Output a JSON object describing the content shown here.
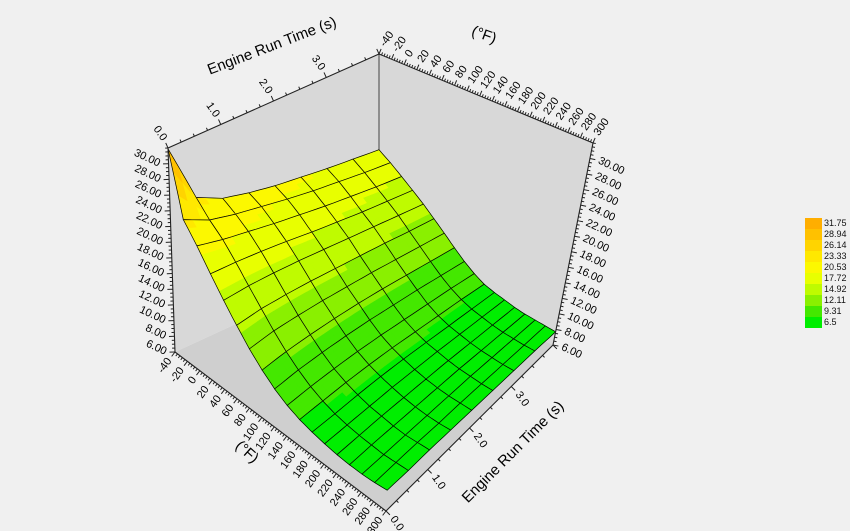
{
  "chart_data": {
    "type": "surface3d",
    "title": "",
    "x_axis": {
      "label": "Engine Run Time (s)",
      "min": 0,
      "max": 4,
      "ticks": [
        0,
        1,
        2,
        3
      ],
      "tick_labels": [
        "0.0",
        "1.0",
        "2.0",
        "3.0"
      ],
      "minor_step": 0.25
    },
    "y_axis": {
      "label": "(°F)",
      "min": -40,
      "max": 300,
      "ticks": [
        -40,
        -20,
        0,
        20,
        40,
        60,
        80,
        100,
        120,
        140,
        160,
        180,
        200,
        220,
        240,
        260,
        280,
        300
      ],
      "tick_labels": [
        "-40",
        "-20",
        "0",
        "20",
        "40",
        "60",
        "80",
        "100",
        "120",
        "140",
        "160",
        "180",
        "200",
        "220",
        "240",
        "260",
        "280",
        "300"
      ],
      "minor_step": 4
    },
    "z_axis": {
      "label": "",
      "min": 6,
      "max": 32,
      "ticks": [
        6,
        8,
        10,
        12,
        14,
        16,
        18,
        20,
        22,
        24,
        26,
        28,
        30
      ],
      "tick_labels": [
        "6.00",
        "8.00",
        "10.00",
        "12.00",
        "14.00",
        "16.00",
        "18.00",
        "20.00",
        "22.00",
        "24.00",
        "26.00",
        "28.00",
        "30.00"
      ],
      "minor_step": 0.5
    },
    "x_values": [
      0,
      0.5,
      1,
      1.5,
      2,
      2.5,
      3,
      3.5,
      4
    ],
    "y_values": [
      -40,
      -20,
      0,
      20,
      40,
      60,
      80,
      100,
      120,
      140,
      160,
      180,
      200,
      220,
      240,
      260,
      280,
      300
    ],
    "z_grid": [
      [
        31.9,
        24.2,
        22.6,
        21.8,
        21.2,
        20.8,
        20.4,
        20.1,
        19.8
      ],
      [
        24.0,
        22.4,
        21.6,
        21.0,
        20.4,
        19.9,
        19.5,
        19.1,
        18.8
      ],
      [
        21.8,
        21.0,
        20.4,
        19.8,
        19.3,
        18.8,
        18.4,
        18.0,
        17.7
      ],
      [
        19.4,
        19.2,
        18.9,
        18.5,
        18.0,
        17.6,
        17.2,
        16.9,
        16.6
      ],
      [
        17.2,
        17.3,
        17.2,
        17.0,
        16.7,
        16.4,
        16.1,
        15.8,
        15.5
      ],
      [
        15.2,
        15.5,
        15.5,
        15.4,
        15.2,
        15.0,
        14.8,
        14.5,
        14.3
      ],
      [
        13.4,
        13.8,
        13.9,
        13.9,
        13.8,
        13.7,
        13.5,
        13.3,
        13.1
      ],
      [
        11.9,
        12.3,
        12.5,
        12.6,
        12.6,
        12.5,
        12.3,
        12.1,
        11.9
      ],
      [
        10.7,
        11.1,
        11.3,
        11.4,
        11.4,
        11.3,
        11.2,
        11.0,
        10.8
      ],
      [
        9.8,
        10.1,
        10.3,
        10.4,
        10.4,
        10.3,
        10.2,
        10.1,
        9.9
      ],
      [
        9.2,
        9.4,
        9.6,
        9.7,
        9.7,
        9.6,
        9.5,
        9.4,
        9.2
      ],
      [
        8.8,
        8.9,
        9.1,
        9.2,
        9.2,
        9.1,
        9.0,
        8.9,
        8.8
      ],
      [
        8.5,
        8.6,
        8.7,
        8.8,
        8.8,
        8.8,
        8.7,
        8.6,
        8.5
      ],
      [
        8.3,
        8.4,
        8.5,
        8.5,
        8.5,
        8.5,
        8.4,
        8.3,
        8.2
      ],
      [
        8.2,
        8.3,
        8.3,
        8.3,
        8.3,
        8.3,
        8.2,
        8.1,
        8.0
      ],
      [
        8.2,
        8.2,
        8.2,
        8.2,
        8.2,
        8.2,
        8.1,
        8.0,
        7.9
      ],
      [
        8.3,
        8.3,
        8.3,
        8.2,
        8.2,
        8.1,
        8.0,
        7.9,
        7.8
      ],
      [
        8.5,
        8.4,
        8.4,
        8.3,
        8.2,
        8.1,
        8.0,
        7.9,
        7.7
      ]
    ],
    "legend": {
      "labels": [
        "31.75",
        "28.94",
        "26.14",
        "23.33",
        "20.53",
        "17.72",
        "14.92",
        "12.11",
        "9.31",
        "6.5"
      ],
      "levels": [
        6.5,
        9.31,
        12.11,
        14.92,
        17.72,
        20.53,
        23.33,
        26.14,
        28.94,
        31.75
      ],
      "band_colors": [
        "#00EE00",
        "#44E800",
        "#8AF000",
        "#BFFB00",
        "#E8FF00",
        "#FCF800",
        "#FFE800",
        "#FFD400",
        "#FFC100",
        "#FFAE00"
      ]
    },
    "view": {
      "A": [
        168,
        148
      ],
      "B": [
        379,
        54
      ],
      "C": [
        593,
        143
      ],
      "D": [
        398,
        295
      ],
      "E": [
        175,
        352
      ],
      "F": [
        379,
        258
      ],
      "G": [
        553,
        345
      ],
      "H": [
        386,
        511
      ]
    },
    "colors": {
      "background": "#F0F0F0",
      "wall": "#D8D8D8",
      "floor": "#CFCFCF",
      "mesh_line": "#000000",
      "axis_line": "#222222"
    }
  }
}
